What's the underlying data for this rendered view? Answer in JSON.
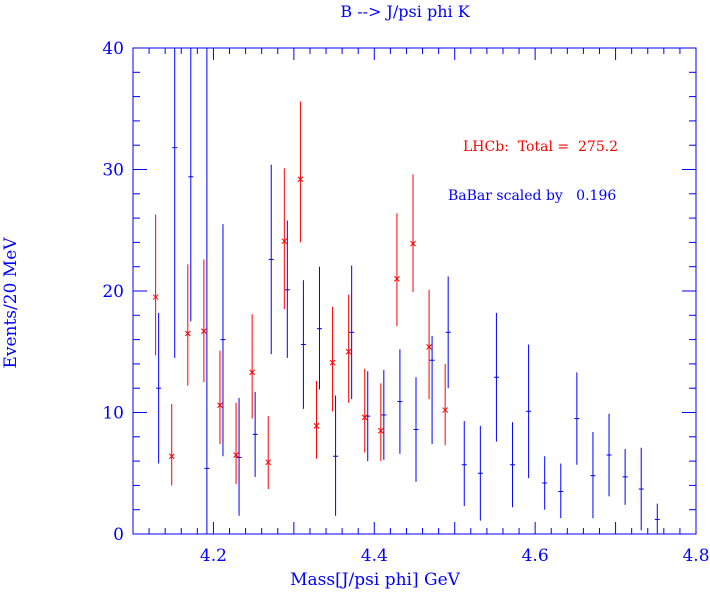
{
  "chart_data": {
    "type": "scatter",
    "title": "B --> J/psi phi K",
    "xlabel": "Mass[J/psi phi] GeV",
    "ylabel": "Events/20 MeV",
    "xlim": [
      4.1,
      4.8
    ],
    "ylim": [
      0,
      40
    ],
    "x_ticks": [
      "4.2",
      "4.4",
      "4.6",
      "4.8"
    ],
    "y_ticks": [
      "0",
      "10",
      "20",
      "30",
      "40"
    ],
    "annotations": {
      "lhcb": "LHCb:  Total =  275.2",
      "babar": "BaBar scaled by   0.196"
    },
    "colors": {
      "lhcb": "#ff0000",
      "babar": "#0000ff",
      "axis": "#0000ff"
    },
    "series": [
      {
        "name": "LHCb",
        "color": "#ff0000",
        "marker": "x",
        "points": [
          {
            "x": 4.13,
            "y": 19.5,
            "lo": 14.7,
            "hi": 26.3
          },
          {
            "x": 4.15,
            "y": 6.4,
            "lo": 4.0,
            "hi": 10.7
          },
          {
            "x": 4.17,
            "y": 16.5,
            "lo": 12.2,
            "hi": 22.2
          },
          {
            "x": 4.19,
            "y": 16.7,
            "lo": 12.5,
            "hi": 22.6
          },
          {
            "x": 4.21,
            "y": 10.6,
            "lo": 7.4,
            "hi": 15.1
          },
          {
            "x": 4.23,
            "y": 6.5,
            "lo": 4.1,
            "hi": 10.8
          },
          {
            "x": 4.25,
            "y": 13.3,
            "lo": 9.5,
            "hi": 18.1
          },
          {
            "x": 4.27,
            "y": 5.9,
            "lo": 3.7,
            "hi": 9.7
          },
          {
            "x": 4.29,
            "y": 24.1,
            "lo": 18.5,
            "hi": 30.1
          },
          {
            "x": 4.31,
            "y": 29.2,
            "lo": 24.0,
            "hi": 35.6
          },
          {
            "x": 4.33,
            "y": 8.9,
            "lo": 6.2,
            "hi": 12.6
          },
          {
            "x": 4.35,
            "y": 14.1,
            "lo": 10.1,
            "hi": 18.7
          },
          {
            "x": 4.37,
            "y": 15.0,
            "lo": 10.8,
            "hi": 19.7
          },
          {
            "x": 4.39,
            "y": 9.6,
            "lo": 6.7,
            "hi": 13.6
          },
          {
            "x": 4.41,
            "y": 8.5,
            "lo": 6.0,
            "hi": 12.4
          },
          {
            "x": 4.43,
            "y": 21.0,
            "lo": 17.1,
            "hi": 26.4
          },
          {
            "x": 4.45,
            "y": 23.9,
            "lo": 19.9,
            "hi": 29.6
          },
          {
            "x": 4.47,
            "y": 15.4,
            "lo": 11.1,
            "hi": 20.1
          },
          {
            "x": 4.49,
            "y": 10.2,
            "lo": 7.3,
            "hi": 14.0
          }
        ]
      },
      {
        "name": "BaBar",
        "color": "#0000ff",
        "marker": "dash",
        "points": [
          {
            "x": 4.13,
            "y": 12.0,
            "lo": 5.8,
            "hi": 18.2
          },
          {
            "x": 4.15,
            "y": 31.8,
            "lo": 14.5,
            "hi": 40.0
          },
          {
            "x": 4.17,
            "y": 29.4,
            "lo": 17.5,
            "hi": 40.0
          },
          {
            "x": 4.19,
            "y": 5.4,
            "lo": 0.0,
            "hi": 40.0
          },
          {
            "x": 4.21,
            "y": 16.0,
            "lo": 6.4,
            "hi": 25.5
          },
          {
            "x": 4.23,
            "y": 6.3,
            "lo": 1.5,
            "hi": 11.2
          },
          {
            "x": 4.25,
            "y": 8.2,
            "lo": 4.7,
            "hi": 11.7
          },
          {
            "x": 4.27,
            "y": 22.6,
            "lo": 14.8,
            "hi": 30.4
          },
          {
            "x": 4.29,
            "y": 20.1,
            "lo": 14.5,
            "hi": 25.8
          },
          {
            "x": 4.31,
            "y": 15.6,
            "lo": 10.3,
            "hi": 20.9
          },
          {
            "x": 4.33,
            "y": 16.9,
            "lo": 11.9,
            "hi": 22.0
          },
          {
            "x": 4.35,
            "y": 6.4,
            "lo": 1.5,
            "hi": 11.4
          },
          {
            "x": 4.37,
            "y": 16.6,
            "lo": 11.1,
            "hi": 22.1
          },
          {
            "x": 4.39,
            "y": 9.7,
            "lo": 6.0,
            "hi": 13.4
          },
          {
            "x": 4.41,
            "y": 9.8,
            "lo": 6.1,
            "hi": 13.5
          },
          {
            "x": 4.43,
            "y": 10.9,
            "lo": 6.6,
            "hi": 15.2
          },
          {
            "x": 4.45,
            "y": 8.6,
            "lo": 4.3,
            "hi": 12.9
          },
          {
            "x": 4.47,
            "y": 14.3,
            "lo": 7.4,
            "hi": 16.3
          },
          {
            "x": 4.49,
            "y": 16.6,
            "lo": 12.0,
            "hi": 21.2
          },
          {
            "x": 4.51,
            "y": 5.7,
            "lo": 2.3,
            "hi": 9.3
          },
          {
            "x": 4.53,
            "y": 5.0,
            "lo": 1.1,
            "hi": 8.9
          },
          {
            "x": 4.55,
            "y": 12.9,
            "lo": 7.6,
            "hi": 18.2
          },
          {
            "x": 4.57,
            "y": 5.7,
            "lo": 2.2,
            "hi": 9.2
          },
          {
            "x": 4.59,
            "y": 10.1,
            "lo": 4.6,
            "hi": 15.6
          },
          {
            "x": 4.61,
            "y": 4.2,
            "lo": 2.0,
            "hi": 6.4
          },
          {
            "x": 4.63,
            "y": 3.5,
            "lo": 1.3,
            "hi": 5.8
          },
          {
            "x": 4.65,
            "y": 9.5,
            "lo": 5.7,
            "hi": 13.3
          },
          {
            "x": 4.67,
            "y": 4.8,
            "lo": 1.3,
            "hi": 8.4
          },
          {
            "x": 4.69,
            "y": 6.5,
            "lo": 3.1,
            "hi": 9.9
          },
          {
            "x": 4.71,
            "y": 4.7,
            "lo": 2.4,
            "hi": 7.0
          },
          {
            "x": 4.73,
            "y": 3.7,
            "lo": 0.3,
            "hi": 7.1
          },
          {
            "x": 4.75,
            "y": 1.2,
            "lo": 0.0,
            "hi": 2.5
          }
        ]
      }
    ]
  }
}
